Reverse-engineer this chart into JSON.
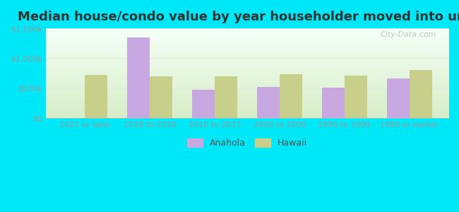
{
  "title": "Median house/condo value by year householder moved into unit",
  "categories": [
    "2021 or later",
    "2018 to 2020",
    "2010 to 2017",
    "2000 to 2009",
    "1990 to 1999",
    "1989 or earlier"
  ],
  "anahola_values": [
    0,
    1350000,
    480000,
    520000,
    510000,
    660000
  ],
  "hawaii_values": [
    720000,
    700000,
    700000,
    730000,
    710000,
    800000
  ],
  "anahola_color": "#c8a8e0",
  "hawaii_color": "#c8cf8a",
  "background_outer": "#00e8f8",
  "background_inner_top": "#f5fff8",
  "background_inner_bottom": "#d8edc8",
  "ylim": [
    0,
    1500000
  ],
  "yticks": [
    0,
    500000,
    1000000,
    1500000
  ],
  "ytick_labels": [
    "$0",
    "$500k",
    "$1,000k",
    "$1,500k"
  ],
  "bar_width": 0.35,
  "legend_labels": [
    "Anahola",
    "Hawaii"
  ],
  "watermark": "City-Data.com",
  "title_fontsize": 13,
  "tick_fontsize": 8,
  "legend_fontsize": 9,
  "tick_color": "#999999",
  "grid_color": "#e0ead8",
  "spine_color": "#bbbbbb"
}
